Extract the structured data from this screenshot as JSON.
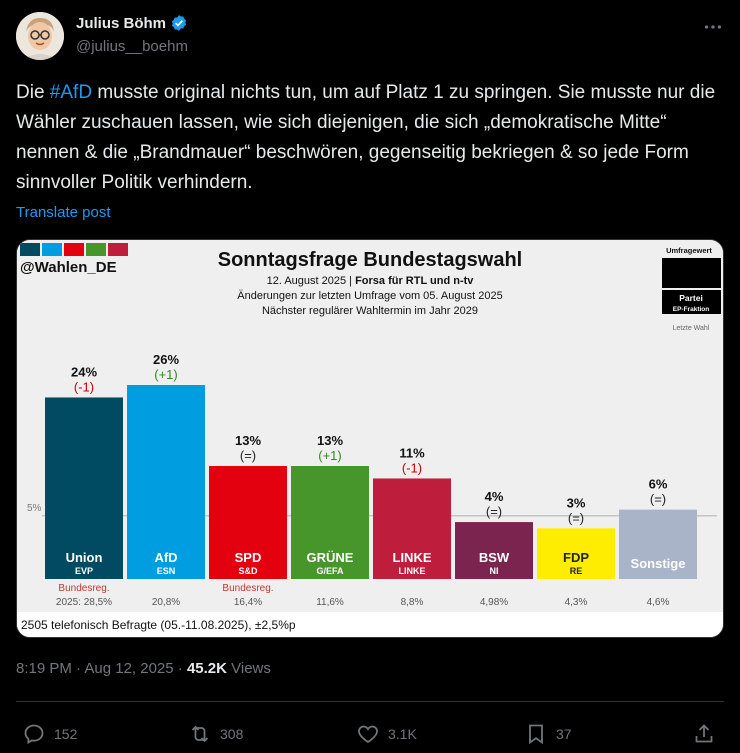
{
  "author": {
    "name": "Julius Böhm",
    "handle": "@julius__boehm"
  },
  "tweet": {
    "text_pre": "Die ",
    "hashtag": "#AfD",
    "text_post": " musste original nichts tun, um auf Platz 1 zu springen. Sie musste nur die Wähler zuschauen lassen, wie sich diejenigen, die sich „demokratische Mitte“ nennen & die „Brandmauer“ beschwören, gegenseitig bekriegen & so jede Form sinnvoller Politik verhindern.",
    "translate": "Translate post"
  },
  "chart_data": {
    "type": "bar",
    "title": "Sonntagsfrage Bundestagswahl",
    "source_tag": "@Wahlen_DE",
    "subtitle_date": "12. August 2025 | ",
    "subtitle_institute": "Forsa für RTL und n-tv",
    "subtitle_change": "Änderungen zur letzten Umfrage vom 05. August 2025",
    "subtitle_next": "Nächster regulärer Wahltermin im Jahr 2029",
    "legend_value": "Umfragewert",
    "legend_party": "Partei",
    "legend_ep": "EP-Fraktion",
    "legend_last": "Letzte Wahl",
    "threshold_label": "5%",
    "threshold": 5,
    "footer": "2505 telefonisch Befragte (05.-11.08.2025), ±2,5%p",
    "categories": [
      "Union",
      "AfD",
      "SPD",
      "GRÜNE",
      "LINKE",
      "BSW",
      "FDP",
      "Sonstige"
    ],
    "ep_groups": [
      "EVP",
      "ESN",
      "S&D",
      "G/EFA",
      "LINKE",
      "NI",
      "RE",
      ""
    ],
    "values": [
      24,
      26,
      13,
      13,
      11,
      4,
      3,
      6
    ],
    "value_labels": [
      "24%",
      "26%",
      "13%",
      "13%",
      "11%",
      "4%",
      "3%",
      "6%"
    ],
    "changes": [
      "(-1)",
      "(+1)",
      "(=)",
      "(+1)",
      "(-1)",
      "(=)",
      "(=)",
      "(=)"
    ],
    "last_election": [
      "2025: 28,5%",
      "20,8%",
      "16,4%",
      "11,6%",
      "8,8%",
      "4,98%",
      "4,3%",
      "4,6%"
    ],
    "gov_label": [
      "Bundesreg.",
      "",
      "Bundesreg.",
      "",
      "",
      "",
      "",
      ""
    ],
    "colors": [
      "#014b62",
      "#009ee0",
      "#e3000f",
      "#46962b",
      "#be1e3c",
      "#7b2450",
      "#ffed00",
      "#aab4c8"
    ],
    "label_text_colors": [
      "#ffffff",
      "#ffffff",
      "#ffffff",
      "#ffffff",
      "#ffffff",
      "#ffffff",
      "#222222",
      "#ffffff"
    ],
    "change_colors": [
      "#cc0000",
      "#2e8b1e",
      "#222222",
      "#2e8b1e",
      "#cc0000",
      "#222222",
      "#222222",
      "#222222"
    ],
    "ylim": [
      0,
      26
    ]
  },
  "meta": {
    "time": "8:19 PM · Aug 12, 2025 · ",
    "views_count": "45.2K",
    "views_label": " Views"
  },
  "actions": {
    "replies": "152",
    "reposts": "308",
    "likes": "3.1K",
    "bookmarks": "37"
  }
}
